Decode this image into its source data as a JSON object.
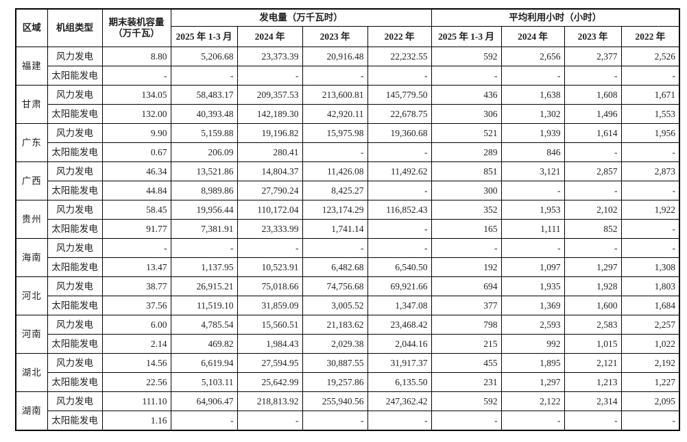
{
  "table": {
    "header": {
      "region": "区域",
      "unit_type": "机组类型",
      "capacity": "期末装机容量（万千瓦）",
      "generation_group": "发电量（万千瓦时）",
      "hours_group": "平均利用小时（小时）",
      "periods": [
        "2025 年 1-3 月",
        "2024 年",
        "2023 年",
        "2022 年"
      ]
    },
    "regions": [
      {
        "name": "福建",
        "rows": [
          {
            "type": "风力发电",
            "capacity": "8.80",
            "gen": [
              "5,206.68",
              "23,373.39",
              "20,916.48",
              "22,232.55"
            ],
            "hours": [
              "592",
              "2,656",
              "2,377",
              "2,526"
            ]
          },
          {
            "type": "太阳能发电",
            "capacity": "-",
            "gen": [
              "-",
              "-",
              "-",
              "-"
            ],
            "hours": [
              "-",
              "-",
              "-",
              "-"
            ]
          }
        ]
      },
      {
        "name": "甘肃",
        "rows": [
          {
            "type": "风力发电",
            "capacity": "134.05",
            "gen": [
              "58,483.17",
              "209,357.53",
              "213,600.81",
              "145,779.50"
            ],
            "hours": [
              "436",
              "1,638",
              "1,608",
              "1,671"
            ]
          },
          {
            "type": "太阳能发电",
            "capacity": "132.00",
            "gen": [
              "40,393.48",
              "142,189.30",
              "42,920.11",
              "22,678.75"
            ],
            "hours": [
              "306",
              "1,302",
              "1,496",
              "1,553"
            ]
          }
        ]
      },
      {
        "name": "广东",
        "rows": [
          {
            "type": "风力发电",
            "capacity": "9.90",
            "gen": [
              "5,159.88",
              "19,196.82",
              "15,975.98",
              "19,360.68"
            ],
            "hours": [
              "521",
              "1,939",
              "1,614",
              "1,956"
            ]
          },
          {
            "type": "太阳能发电",
            "capacity": "0.67",
            "gen": [
              "206.09",
              "280.41",
              "-",
              "-"
            ],
            "hours": [
              "289",
              "846",
              "-",
              "-"
            ]
          }
        ]
      },
      {
        "name": "广西",
        "rows": [
          {
            "type": "风力发电",
            "capacity": "46.34",
            "gen": [
              "13,521.86",
              "14,804.37",
              "11,426.08",
              "11,492.62"
            ],
            "hours": [
              "851",
              "3,121",
              "2,857",
              "2,873"
            ]
          },
          {
            "type": "太阳能发电",
            "capacity": "44.84",
            "gen": [
              "8,989.86",
              "27,790.24",
              "8,425.27",
              "-"
            ],
            "hours": [
              "300",
              "-",
              "-",
              "-"
            ]
          }
        ]
      },
      {
        "name": "贵州",
        "rows": [
          {
            "type": "风力发电",
            "capacity": "58.45",
            "gen": [
              "19,956.44",
              "110,172.04",
              "123,174.29",
              "116,852.43"
            ],
            "hours": [
              "352",
              "1,953",
              "2,102",
              "1,922"
            ]
          },
          {
            "type": "太阳能发电",
            "capacity": "91.77",
            "gen": [
              "7,381.91",
              "23,333.99",
              "1,741.14",
              "-"
            ],
            "hours": [
              "165",
              "1,111",
              "852",
              "-"
            ]
          }
        ]
      },
      {
        "name": "海南",
        "rows": [
          {
            "type": "风力发电",
            "capacity": "-",
            "gen": [
              "-",
              "-",
              "-",
              "-"
            ],
            "hours": [
              "-",
              "-",
              "-",
              "-"
            ]
          },
          {
            "type": "太阳能发电",
            "capacity": "13.47",
            "gen": [
              "1,137.95",
              "10,523.91",
              "6,482.68",
              "6,540.50"
            ],
            "hours": [
              "192",
              "1,097",
              "1,297",
              "1,308"
            ]
          }
        ]
      },
      {
        "name": "河北",
        "rows": [
          {
            "type": "风力发电",
            "capacity": "38.77",
            "gen": [
              "26,915.21",
              "75,018.66",
              "74,756.68",
              "69,921.66"
            ],
            "hours": [
              "694",
              "1,935",
              "1,928",
              "1,803"
            ]
          },
          {
            "type": "太阳能发电",
            "capacity": "37.56",
            "gen": [
              "11,519.10",
              "31,859.09",
              "3,005.52",
              "1,347.08"
            ],
            "hours": [
              "377",
              "1,369",
              "1,600",
              "1,684"
            ]
          }
        ]
      },
      {
        "name": "河南",
        "rows": [
          {
            "type": "风力发电",
            "capacity": "6.00",
            "gen": [
              "4,785.54",
              "15,560.51",
              "21,183.62",
              "23,468.42"
            ],
            "hours": [
              "798",
              "2,593",
              "2,583",
              "2,257"
            ]
          },
          {
            "type": "太阳能发电",
            "capacity": "2.14",
            "gen": [
              "469.82",
              "1,984.43",
              "2,029.38",
              "2,044.16"
            ],
            "hours": [
              "215",
              "992",
              "1,015",
              "1,022"
            ]
          }
        ]
      },
      {
        "name": "湖北",
        "rows": [
          {
            "type": "风力发电",
            "capacity": "14.56",
            "gen": [
              "6,619.94",
              "27,594.95",
              "30,887.55",
              "31,917.37"
            ],
            "hours": [
              "455",
              "1,895",
              "2,121",
              "2,192"
            ]
          },
          {
            "type": "太阳能发电",
            "capacity": "22.56",
            "gen": [
              "5,103.11",
              "25,642.99",
              "19,257.86",
              "6,135.50"
            ],
            "hours": [
              "231",
              "1,297",
              "1,213",
              "1,227"
            ]
          }
        ]
      },
      {
        "name": "湖南",
        "rows": [
          {
            "type": "风力发电",
            "capacity": "111.10",
            "gen": [
              "64,906.47",
              "218,813.92",
              "255,940.56",
              "247,362.42"
            ],
            "hours": [
              "592",
              "2,122",
              "2,314",
              "2,095"
            ]
          },
          {
            "type": "太阳能发电",
            "capacity": "1.16",
            "gen": [
              "-",
              "-",
              "-",
              "-"
            ],
            "hours": [
              "-",
              "-",
              "-",
              "-"
            ]
          }
        ]
      }
    ]
  }
}
